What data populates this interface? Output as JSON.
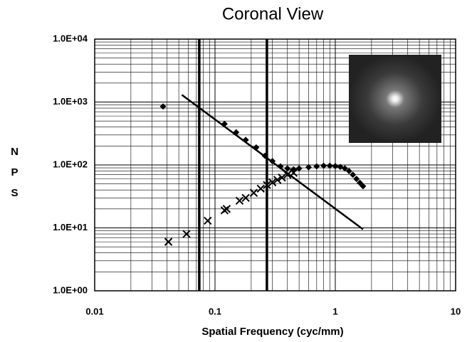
{
  "chart_data": {
    "type": "scatter",
    "title": "Coronal View",
    "x_label": "Spatial Frequency (cyc/mm)",
    "y_label": "NPS",
    "log_x": true,
    "log_y": true,
    "grid": true,
    "xlim": [
      0.01,
      10
    ],
    "ylim": [
      1,
      10000
    ],
    "xticks": [
      0.01,
      0.1,
      1,
      10
    ],
    "yticks": [
      {
        "value": 1,
        "label": "1.0E+00"
      },
      {
        "value": 10,
        "label": "1.0E+01"
      },
      {
        "value": 100,
        "label": "1.0E+02"
      },
      {
        "value": 1000,
        "label": "1.0E+03"
      },
      {
        "value": 10000,
        "label": "1.0E+04"
      }
    ],
    "vlines": [
      0.074,
      0.27
    ],
    "series": [
      {
        "marker": "diamond",
        "color": "#000000",
        "x": [
          0.037,
          0.12,
          0.15,
          0.18,
          0.22,
          0.26,
          0.3,
          0.35,
          0.4,
          0.45,
          0.5,
          0.6,
          0.7,
          0.8,
          0.9,
          1.0,
          1.1,
          1.2,
          1.3,
          1.4,
          1.5,
          1.6,
          1.7
        ],
        "values": [
          850,
          450,
          330,
          250,
          190,
          140,
          115,
          95,
          88,
          85,
          88,
          92,
          95,
          97,
          97,
          96,
          93,
          88,
          80,
          70,
          60,
          52,
          46
        ]
      },
      {
        "marker": "x",
        "color": "#000000",
        "x": [
          0.041,
          0.058,
          0.087,
          0.12,
          0.125,
          0.16,
          0.18,
          0.21,
          0.24,
          0.27,
          0.3,
          0.33,
          0.36,
          0.4,
          0.45
        ],
        "values": [
          6,
          8,
          13,
          19,
          20,
          27,
          30,
          36,
          42,
          48,
          53,
          58,
          63,
          70,
          75
        ]
      },
      {
        "marker": "line",
        "color": "#000000",
        "x": [
          0.053,
          1.7
        ],
        "values": [
          1300,
          9.5
        ]
      }
    ]
  }
}
